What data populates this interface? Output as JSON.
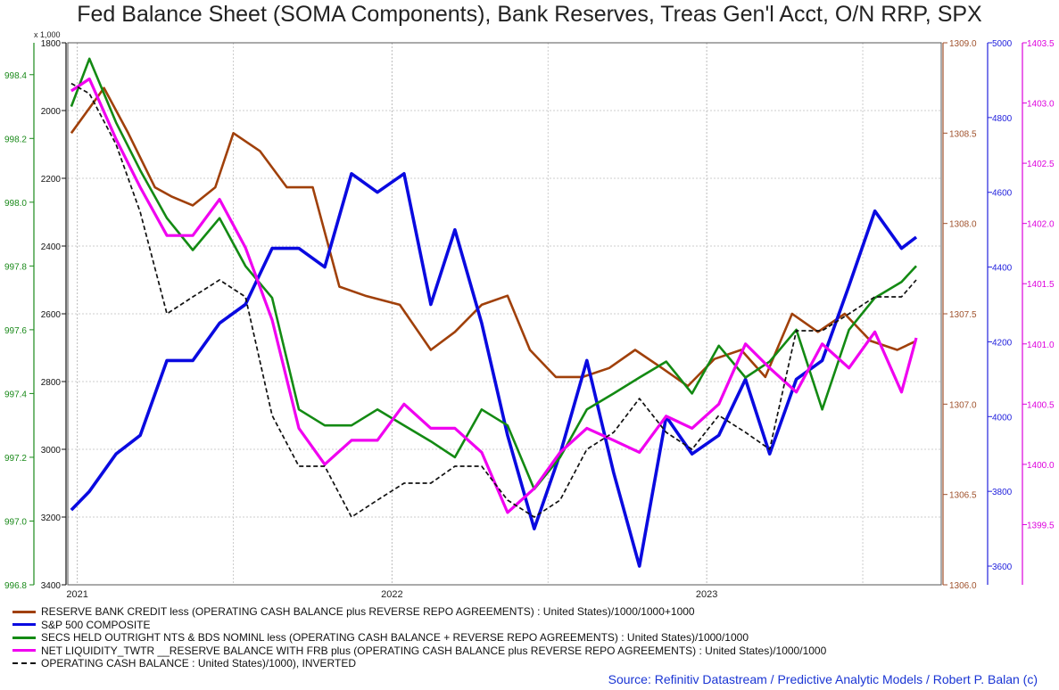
{
  "chart_data": {
    "type": "line",
    "title": "Fed Balance Sheet (SOMA Components), Bank Reserves, Treas Gen'l Acct, O/N RRP, SPX",
    "source": "Source: Refinitiv Datastream / Predictive Analytic Models / Robert P. Balan (c)",
    "x_ticks": [
      "2021",
      "2022",
      "2023"
    ],
    "x_range": [
      "2020-12-21",
      "2023-09-30"
    ],
    "axes": {
      "left_inner": {
        "color": "#111111",
        "multiplier_label": "x 1,000",
        "inverted": true,
        "range": [
          1800,
          3400
        ],
        "ticks": [
          "1800",
          "2000",
          "2200",
          "2400",
          "2600",
          "2800",
          "3000",
          "3200",
          "3400"
        ]
      },
      "left_outer": {
        "color": "#1a8a1a",
        "range": [
          996.8,
          998.5
        ],
        "ticks": [
          "998.4",
          "998.2",
          "998.0",
          "997.8",
          "997.6",
          "997.4",
          "997.2",
          "997.0",
          "996.8"
        ]
      },
      "right_1": {
        "color": "#a0522d",
        "range": [
          1306.0,
          1309.0
        ],
        "ticks": [
          "1309.0",
          "1308.5",
          "1308.0",
          "1307.5",
          "1307.0",
          "1306.5",
          "1306.0"
        ]
      },
      "right_2": {
        "color": "#2222dd",
        "range": [
          3550,
          5000
        ],
        "ticks": [
          "5000",
          "4800",
          "4600",
          "4400",
          "4200",
          "4000",
          "3800",
          "3600"
        ]
      },
      "right_3": {
        "color": "#dd00dd",
        "range": [
          1399.0,
          1403.5
        ],
        "ticks": [
          "1403.5",
          "1403.0",
          "1402.5",
          "1402.0",
          "1401.5",
          "1401.0",
          "1400.5",
          "1400.0",
          "1399.5"
        ]
      }
    },
    "series": [
      {
        "name": "RESERVE BANK CREDIT less (OPERATING CASH BALANCE plus REVERSE REPO AGREEMENTS) : United States)/1000/1000+1000",
        "color": "#a0400a",
        "width": 2.6,
        "dash": "",
        "axis": "right_1",
        "x": [
          "2020-12-25",
          "2021-02-01",
          "2021-03-01",
          "2021-04-01",
          "2021-04-20",
          "2021-05-15",
          "2021-06-10",
          "2021-07-01",
          "2021-08-01",
          "2021-09-01",
          "2021-10-01",
          "2021-11-01",
          "2021-12-01",
          "2022-01-10",
          "2022-02-15",
          "2022-03-15",
          "2022-04-15",
          "2022-05-15",
          "2022-06-10",
          "2022-07-10",
          "2022-08-10",
          "2022-09-10",
          "2022-10-10",
          "2022-11-10",
          "2022-12-10",
          "2023-01-10",
          "2023-02-10",
          "2023-03-10",
          "2023-04-10",
          "2023-05-10",
          "2023-06-10",
          "2023-07-10",
          "2023-08-10",
          "2023-09-01"
        ],
        "y": [
          1308.5,
          1308.75,
          1308.5,
          1308.2,
          1308.15,
          1308.1,
          1308.2,
          1308.5,
          1308.4,
          1308.2,
          1308.2,
          1307.65,
          1307.6,
          1307.55,
          1307.3,
          1307.4,
          1307.55,
          1307.6,
          1307.3,
          1307.15,
          1307.15,
          1307.2,
          1307.3,
          1307.2,
          1307.1,
          1307.25,
          1307.3,
          1307.15,
          1307.5,
          1307.4,
          1307.5,
          1307.35,
          1307.3,
          1307.35
        ]
      },
      {
        "name": "S&P 500 COMPOSITE",
        "color": "#0a0ae0",
        "width": 3.6,
        "dash": "",
        "axis": "right_2",
        "x": [
          "2020-12-25",
          "2021-01-15",
          "2021-02-15",
          "2021-03-15",
          "2021-04-15",
          "2021-05-15",
          "2021-06-15",
          "2021-07-15",
          "2021-08-15",
          "2021-09-15",
          "2021-10-15",
          "2021-11-15",
          "2021-12-15",
          "2022-01-15",
          "2022-02-15",
          "2022-03-15",
          "2022-04-15",
          "2022-05-15",
          "2022-06-15",
          "2022-07-15",
          "2022-08-15",
          "2022-09-15",
          "2022-10-15",
          "2022-11-15",
          "2022-12-15",
          "2023-01-15",
          "2023-02-15",
          "2023-03-15",
          "2023-04-15",
          "2023-05-15",
          "2023-06-15",
          "2023-07-15",
          "2023-08-15",
          "2023-09-01"
        ],
        "y": [
          3750,
          3800,
          3900,
          3950,
          4150,
          4150,
          4250,
          4300,
          4450,
          4450,
          4400,
          4650,
          4600,
          4650,
          4300,
          4500,
          4250,
          3950,
          3700,
          3900,
          4150,
          3850,
          3600,
          4000,
          3900,
          3950,
          4100,
          3900,
          4100,
          4150,
          4350,
          4550,
          4450,
          4480
        ]
      },
      {
        "name": "SECS HELD OUTRIGHT NTS & BDS NOMINL less (OPERATING CASH BALANCE + REVERSE REPO AGREEMENTS) : United States)/1000/1000",
        "color": "#138a13",
        "width": 2.6,
        "dash": "",
        "axis": "left_outer",
        "x": [
          "2020-12-25",
          "2021-01-15",
          "2021-02-15",
          "2021-03-15",
          "2021-04-15",
          "2021-05-15",
          "2021-06-15",
          "2021-07-15",
          "2021-08-15",
          "2021-09-15",
          "2021-10-15",
          "2021-11-15",
          "2021-12-15",
          "2022-01-15",
          "2022-02-15",
          "2022-03-15",
          "2022-04-15",
          "2022-05-15",
          "2022-06-15",
          "2022-07-15",
          "2022-08-15",
          "2022-09-15",
          "2022-10-15",
          "2022-11-15",
          "2022-12-15",
          "2023-01-15",
          "2023-02-15",
          "2023-03-15",
          "2023-04-15",
          "2023-05-15",
          "2023-06-15",
          "2023-07-15",
          "2023-08-15",
          "2023-09-01"
        ],
        "y": [
          998.3,
          998.45,
          998.25,
          998.1,
          997.95,
          997.85,
          997.95,
          997.8,
          997.7,
          997.35,
          997.3,
          997.3,
          997.35,
          997.3,
          997.25,
          997.2,
          997.35,
          997.3,
          997.1,
          997.2,
          997.35,
          997.4,
          997.45,
          997.5,
          997.4,
          997.55,
          997.45,
          997.5,
          997.6,
          997.35,
          997.6,
          997.7,
          997.75,
          997.8
        ]
      },
      {
        "name": "NET LIQUIDITY_TWTR __RESERVE BALANCE WITH FRB plus (OPERATING CASH BALANCE plus REVERSE REPO AGREEMENTS) : United States)/1000/1000",
        "color": "#f000f0",
        "width": 3.2,
        "dash": "",
        "axis": "right_3",
        "x": [
          "2020-12-25",
          "2021-01-15",
          "2021-02-15",
          "2021-03-15",
          "2021-04-15",
          "2021-05-15",
          "2021-06-15",
          "2021-07-15",
          "2021-08-15",
          "2021-09-15",
          "2021-10-15",
          "2021-11-15",
          "2021-12-15",
          "2022-01-15",
          "2022-02-15",
          "2022-03-15",
          "2022-04-15",
          "2022-05-15",
          "2022-06-15",
          "2022-07-15",
          "2022-08-15",
          "2022-09-15",
          "2022-10-15",
          "2022-11-15",
          "2022-12-15",
          "2023-01-15",
          "2023-02-15",
          "2023-03-15",
          "2023-04-15",
          "2023-05-15",
          "2023-06-15",
          "2023-07-15",
          "2023-08-15",
          "2023-09-01"
        ],
        "y": [
          1403.1,
          1403.2,
          1402.7,
          1402.3,
          1401.9,
          1401.9,
          1402.2,
          1401.8,
          1401.2,
          1400.3,
          1400.0,
          1400.2,
          1400.2,
          1400.5,
          1400.3,
          1400.3,
          1400.1,
          1399.6,
          1399.8,
          1400.1,
          1400.3,
          1400.2,
          1400.1,
          1400.4,
          1400.3,
          1400.5,
          1401.0,
          1400.8,
          1400.6,
          1401.0,
          1400.8,
          1401.1,
          1400.6,
          1401.05
        ]
      },
      {
        "name": "OPERATING CASH BALANCE : United States)/1000), INVERTED",
        "color": "#111111",
        "width": 1.7,
        "dash": "5,3",
        "axis": "left_inner",
        "x": [
          "2020-12-25",
          "2021-01-15",
          "2021-02-15",
          "2021-03-15",
          "2021-04-15",
          "2021-05-15",
          "2021-06-15",
          "2021-07-15",
          "2021-08-15",
          "2021-09-15",
          "2021-10-15",
          "2021-11-15",
          "2021-12-15",
          "2022-01-15",
          "2022-02-15",
          "2022-03-15",
          "2022-04-15",
          "2022-05-15",
          "2022-06-15",
          "2022-07-15",
          "2022-08-15",
          "2022-09-15",
          "2022-10-15",
          "2022-11-15",
          "2022-12-15",
          "2023-01-15",
          "2023-02-15",
          "2023-03-15",
          "2023-04-15",
          "2023-05-15",
          "2023-06-15",
          "2023-07-15",
          "2023-08-15",
          "2023-09-01"
        ],
        "y": [
          1920,
          1950,
          2100,
          2300,
          2600,
          2550,
          2500,
          2550,
          2900,
          3050,
          3050,
          3200,
          3150,
          3100,
          3100,
          3050,
          3050,
          3150,
          3200,
          3150,
          3000,
          2950,
          2850,
          2950,
          3000,
          2900,
          2950,
          3000,
          2650,
          2650,
          2600,
          2550,
          2550,
          2500
        ]
      }
    ],
    "legend_position": "bottom-left",
    "grid": true
  }
}
